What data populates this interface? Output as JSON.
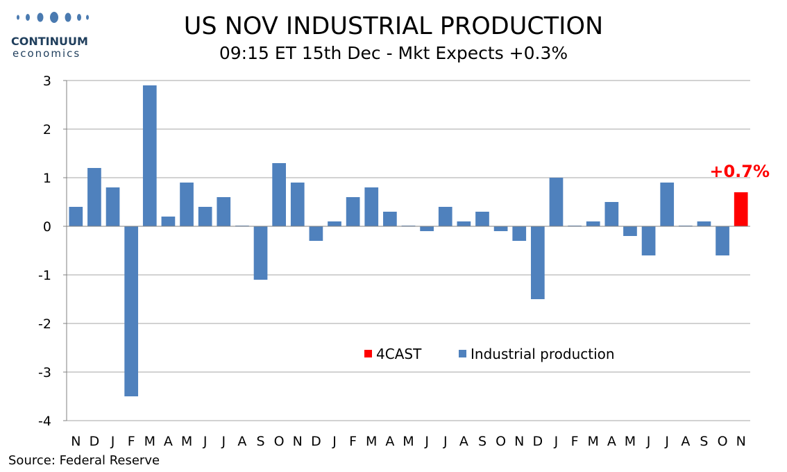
{
  "logo": {
    "brand": "CONTINUUM",
    "brand_sub": "economics",
    "dot_color": "#4a7ab0"
  },
  "title": "US NOV INDUSTRIAL PRODUCTION",
  "subtitle": "09:15 ET 15th Dec - Mkt Expects +0.3%",
  "source": "Source: Federal Reserve",
  "chart_data": {
    "type": "bar",
    "categories": [
      "N",
      "D",
      "J",
      "F",
      "M",
      "A",
      "M",
      "J",
      "J",
      "A",
      "S",
      "O",
      "N",
      "D",
      "J",
      "F",
      "M",
      "A",
      "M",
      "J",
      "J",
      "A",
      "S",
      "O",
      "N",
      "D",
      "J",
      "F",
      "M",
      "A",
      "M",
      "J",
      "J",
      "A",
      "S",
      "O",
      "N"
    ],
    "series": [
      {
        "name": "Industrial production",
        "color": "#4f81bd",
        "values": [
          0.4,
          1.2,
          0.8,
          -3.5,
          2.9,
          0.2,
          0.9,
          0.4,
          0.6,
          0.0,
          -1.1,
          1.3,
          0.9,
          -0.3,
          0.1,
          0.6,
          0.8,
          0.3,
          0.0,
          -0.1,
          0.4,
          0.1,
          0.3,
          -0.1,
          -0.3,
          -1.5,
          1.0,
          0.0,
          0.1,
          0.5,
          -0.2,
          -0.6,
          0.9,
          0.0,
          0.1,
          -0.6,
          null
        ]
      },
      {
        "name": "4CAST",
        "color": "#ff0000",
        "values": [
          null,
          null,
          null,
          null,
          null,
          null,
          null,
          null,
          null,
          null,
          null,
          null,
          null,
          null,
          null,
          null,
          null,
          null,
          null,
          null,
          null,
          null,
          null,
          null,
          null,
          null,
          null,
          null,
          null,
          null,
          null,
          null,
          null,
          null,
          null,
          null,
          0.7
        ]
      }
    ],
    "ylim": [
      -4,
      3
    ],
    "yticks": [
      3,
      2,
      1,
      0,
      -1,
      -2,
      -3,
      -4
    ],
    "annotation": "+0.7%",
    "annotation_color": "#ff0000",
    "legend": [
      "4CAST",
      "Industrial production"
    ],
    "legend_placement": "lower-center",
    "grid": true
  }
}
